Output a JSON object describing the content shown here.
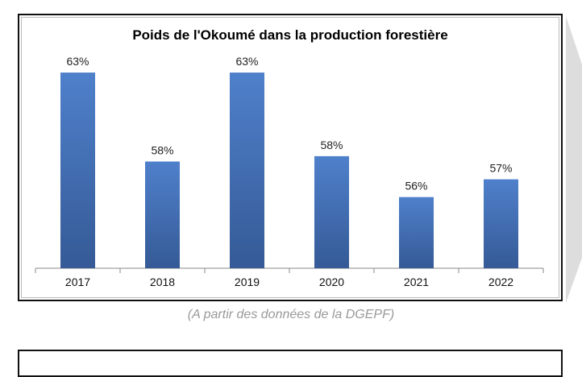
{
  "chart_data": {
    "type": "bar",
    "title": "Poids de l'Okoumé dans la production forestière",
    "categories": [
      "2017",
      "2018",
      "2019",
      "2020",
      "2021",
      "2022"
    ],
    "values": [
      63,
      58,
      63,
      58.3,
      56,
      57
    ],
    "data_labels": [
      "63%",
      "58%",
      "63%",
      "58%",
      "56%",
      "57%"
    ],
    "xlabel": "",
    "ylabel": "",
    "ylim": [
      52,
      64
    ],
    "grid": false,
    "legend": "none",
    "bar_color": "#4a7cc4"
  },
  "caption": "(A partir des données de la DGEPF)"
}
